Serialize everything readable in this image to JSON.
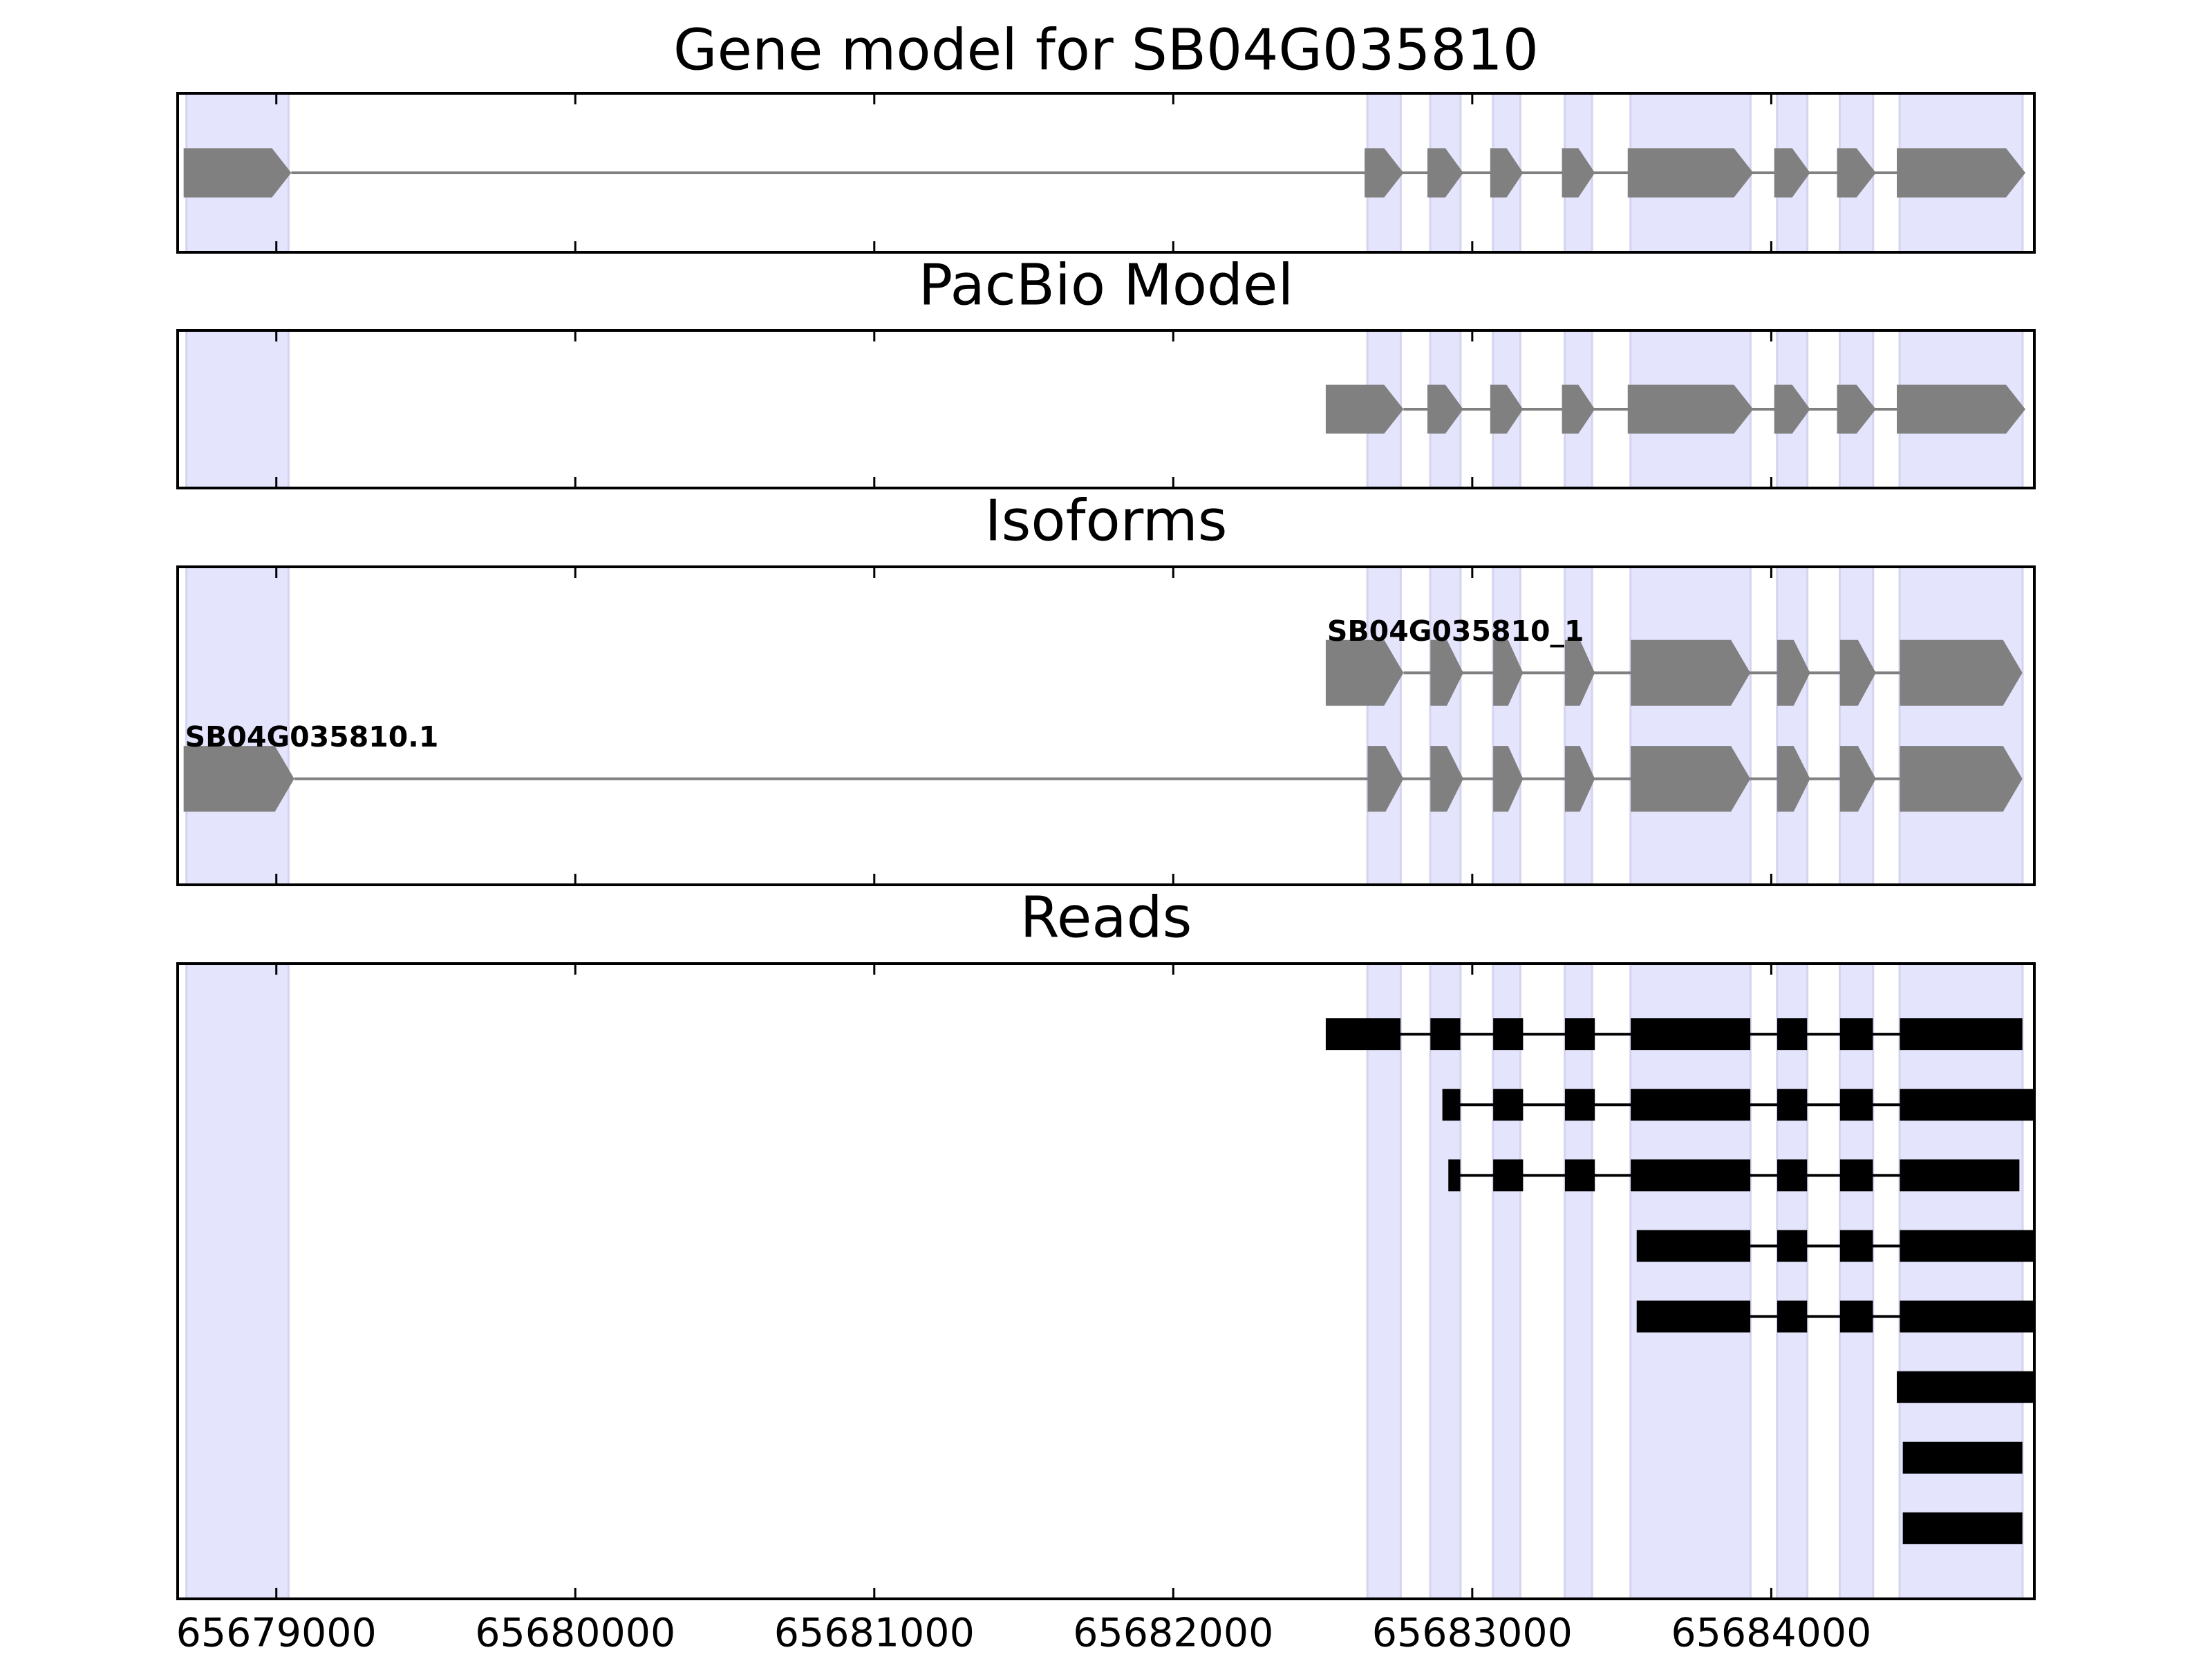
{
  "chart_data": [
    {
      "type": "gene",
      "title": "Gene model for SB04G035810",
      "color": "#808080",
      "xlim": [
        65678670,
        65684880
      ],
      "xticks": [
        65679000,
        65680000,
        65681000,
        65682000,
        65683000,
        65684000
      ],
      "tracks": [
        {
          "exons": [
            [
              65678690,
              65679050
            ],
            [
              65682640,
              65682770
            ],
            [
              65682850,
              65682970
            ],
            [
              65683060,
              65683170
            ],
            [
              65683300,
              65683410
            ],
            [
              65683520,
              65683940
            ],
            [
              65684010,
              65684130
            ],
            [
              65684220,
              65684350
            ],
            [
              65684420,
              65684850
            ]
          ]
        }
      ]
    },
    {
      "type": "gene",
      "title": "PacBio Model",
      "color": "#808080",
      "xlim": [
        65678670,
        65684880
      ],
      "xticks": [
        65679000,
        65680000,
        65681000,
        65682000,
        65683000,
        65684000
      ],
      "tracks": [
        {
          "exons": [
            [
              65682510,
              65682770
            ],
            [
              65682850,
              65682970
            ],
            [
              65683060,
              65683170
            ],
            [
              65683300,
              65683410
            ],
            [
              65683520,
              65683940
            ],
            [
              65684010,
              65684130
            ],
            [
              65684220,
              65684350
            ],
            [
              65684420,
              65684850
            ]
          ]
        }
      ]
    },
    {
      "type": "gene",
      "title": "Isoforms",
      "color": "#808080",
      "xlim": [
        65678670,
        65684880
      ],
      "xticks": [
        65679000,
        65680000,
        65681000,
        65682000,
        65683000,
        65684000
      ],
      "tracks": [
        {
          "name": "SB04G035810_1",
          "exons": [
            [
              65682510,
              65682770
            ],
            [
              65682860,
              65682970
            ],
            [
              65683070,
              65683170
            ],
            [
              65683310,
              65683410
            ],
            [
              65683530,
              65683930
            ],
            [
              65684020,
              65684130
            ],
            [
              65684230,
              65684350
            ],
            [
              65684430,
              65684840
            ]
          ]
        },
        {
          "name": "SB04G035810.1",
          "exons": [
            [
              65678690,
              65679060
            ],
            [
              65682650,
              65682770
            ],
            [
              65682860,
              65682970
            ],
            [
              65683070,
              65683170
            ],
            [
              65683310,
              65683410
            ],
            [
              65683530,
              65683930
            ],
            [
              65684020,
              65684130
            ],
            [
              65684230,
              65684350
            ],
            [
              65684430,
              65684840
            ]
          ]
        }
      ]
    },
    {
      "type": "reads",
      "title": "Reads",
      "color": "#000000",
      "xlim": [
        65678670,
        65684880
      ],
      "xticks": [
        65679000,
        65680000,
        65681000,
        65682000,
        65683000,
        65684000
      ],
      "tracks": [
        {
          "exons": [
            [
              65682510,
              65682760
            ],
            [
              65682860,
              65682960
            ],
            [
              65683070,
              65683170
            ],
            [
              65683310,
              65683410
            ],
            [
              65683530,
              65683930
            ],
            [
              65684020,
              65684120
            ],
            [
              65684230,
              65684340
            ],
            [
              65684430,
              65684840
            ]
          ]
        },
        {
          "exons": [
            [
              65682900,
              65682960
            ],
            [
              65683070,
              65683170
            ],
            [
              65683310,
              65683410
            ],
            [
              65683530,
              65683930
            ],
            [
              65684020,
              65684120
            ],
            [
              65684230,
              65684340
            ],
            [
              65684430,
              65684880
            ]
          ]
        },
        {
          "exons": [
            [
              65682920,
              65682960
            ],
            [
              65683070,
              65683170
            ],
            [
              65683310,
              65683410
            ],
            [
              65683530,
              65683930
            ],
            [
              65684020,
              65684120
            ],
            [
              65684230,
              65684340
            ],
            [
              65684430,
              65684830
            ]
          ]
        },
        {
          "exons": [
            [
              65683550,
              65683930
            ],
            [
              65684020,
              65684120
            ],
            [
              65684230,
              65684340
            ],
            [
              65684430,
              65684880
            ]
          ]
        },
        {
          "exons": [
            [
              65683550,
              65683930
            ],
            [
              65684020,
              65684120
            ],
            [
              65684230,
              65684340
            ],
            [
              65684430,
              65684880
            ]
          ]
        },
        {
          "exons": [
            [
              65684420,
              65684880
            ]
          ]
        },
        {
          "exons": [
            [
              65684440,
              65684840
            ]
          ]
        },
        {
          "exons": [
            [
              65684440,
              65684840
            ]
          ]
        }
      ]
    }
  ]
}
